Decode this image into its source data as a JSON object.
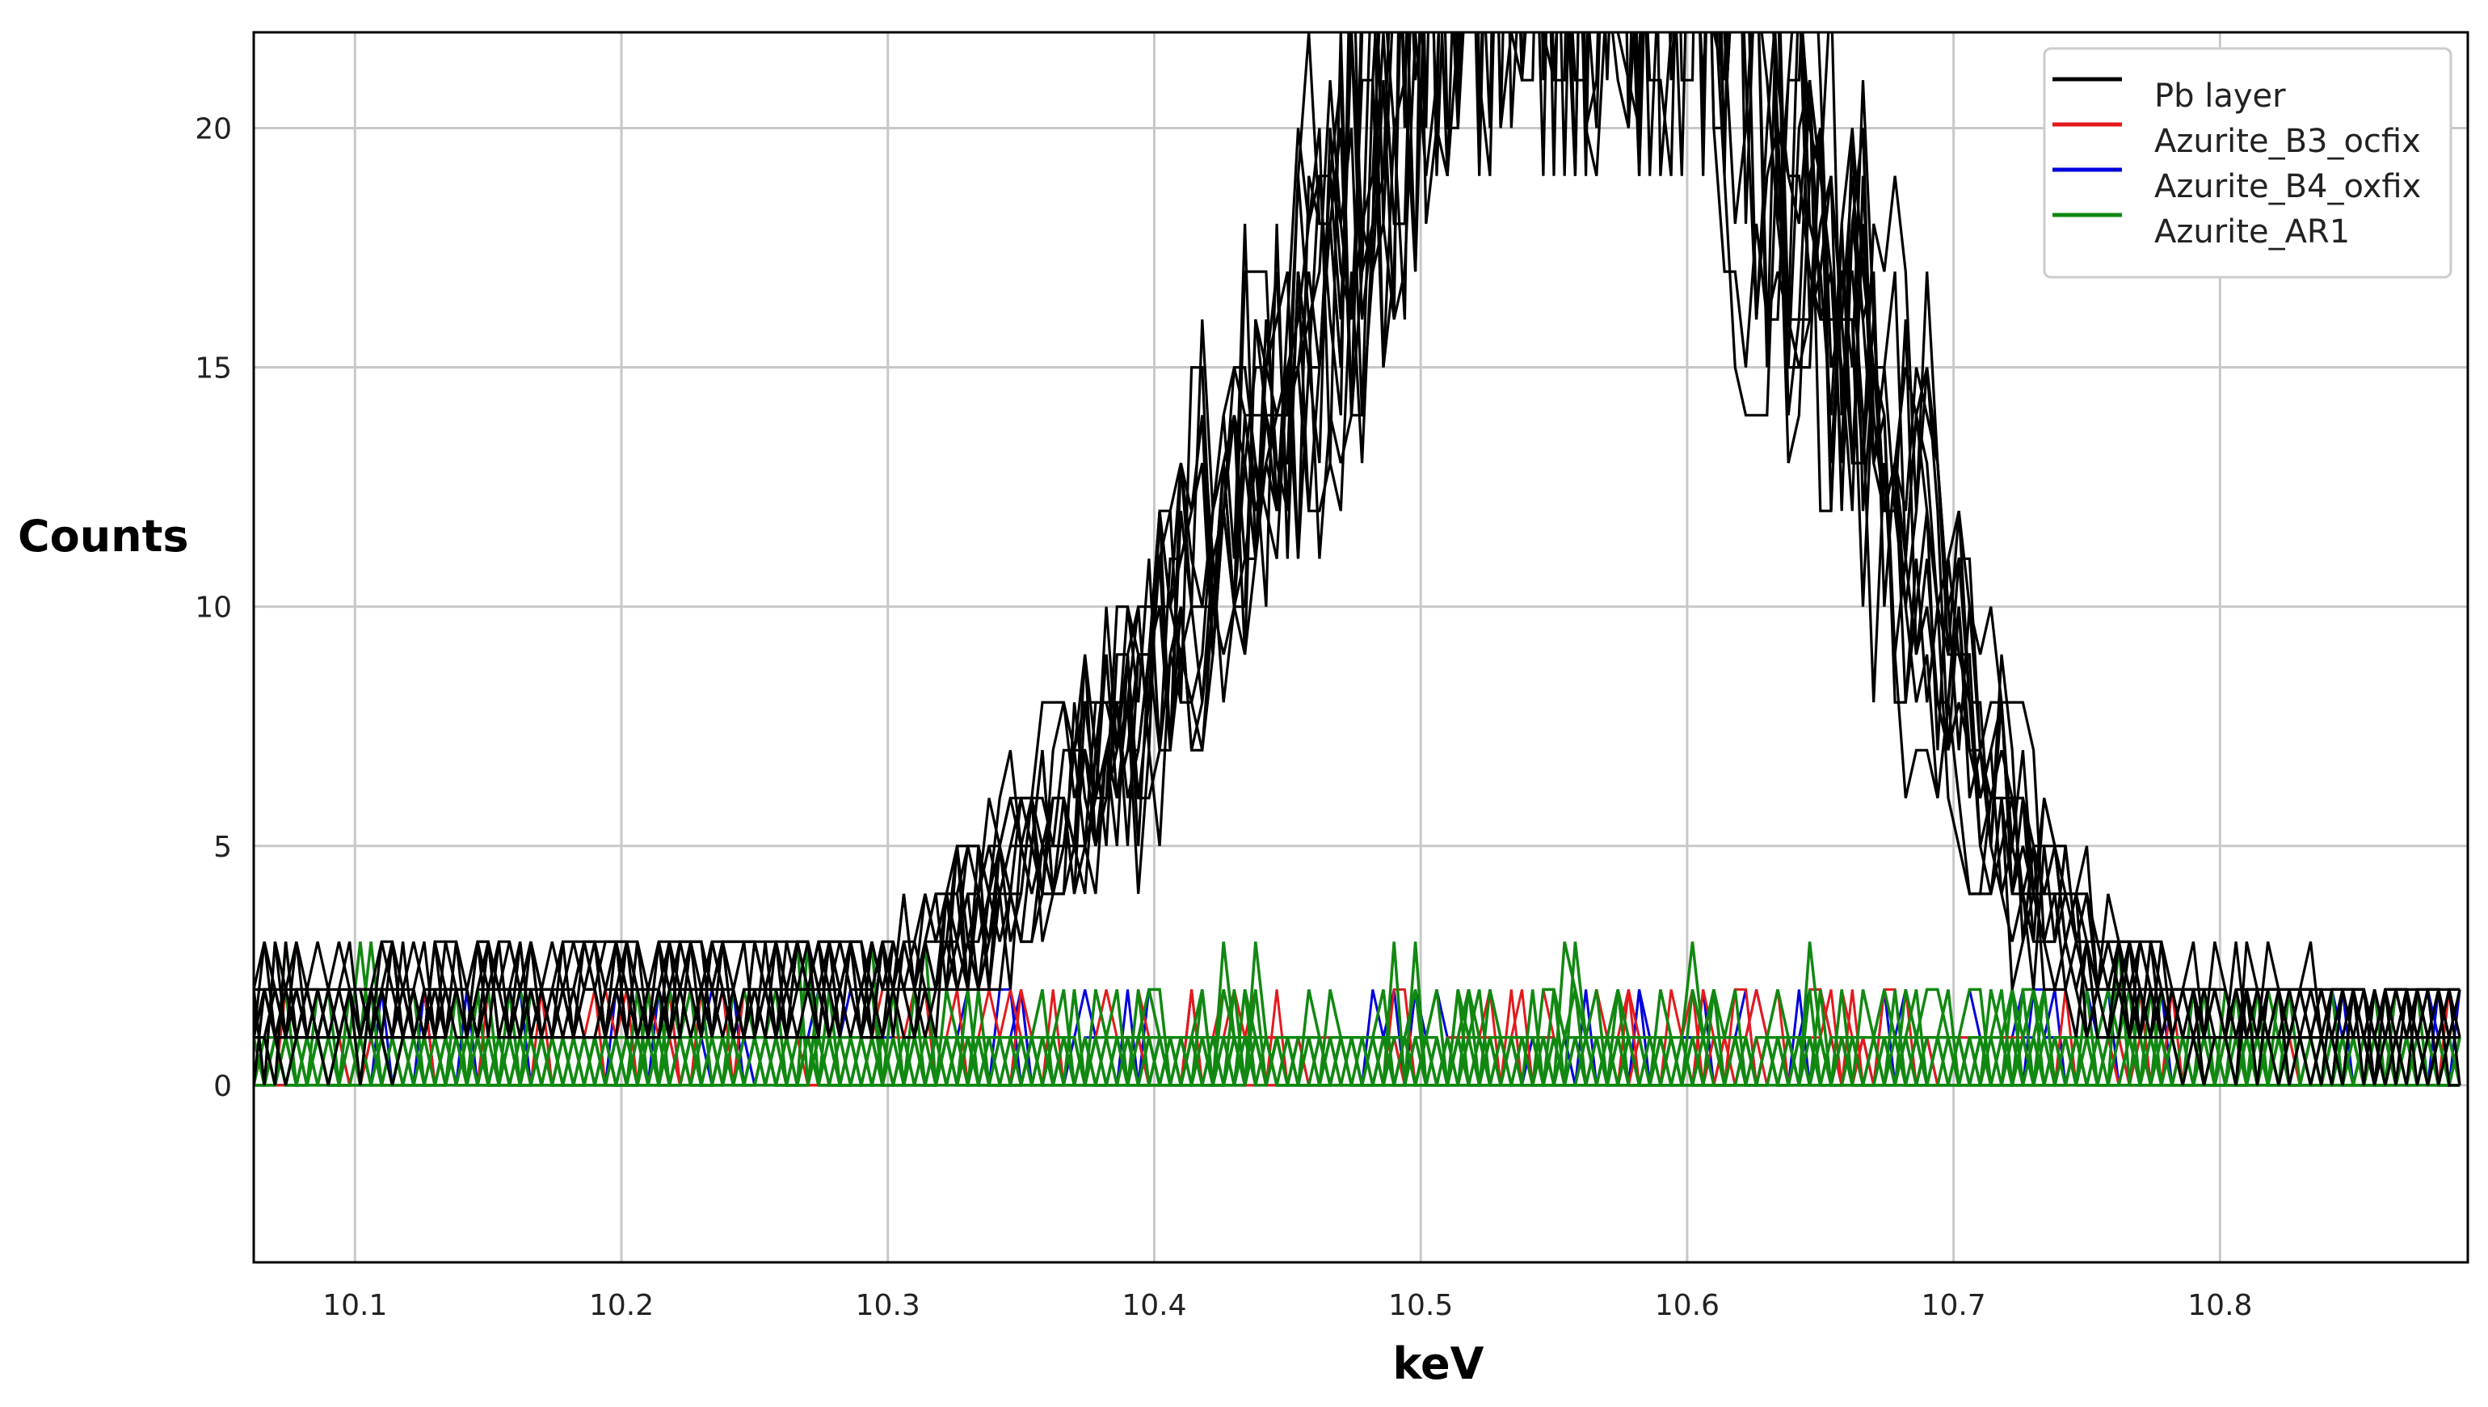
{
  "chart_data": {
    "type": "line",
    "title": "",
    "xlabel": "keV",
    "ylabel": "Counts",
    "xlim": [
      10.062,
      10.893
    ],
    "ylim": [
      -3.7,
      22
    ],
    "xticks": [
      10.1,
      10.2,
      10.3,
      10.4,
      10.5,
      10.6,
      10.7,
      10.8
    ],
    "yticks": [
      0,
      5,
      10,
      15,
      20
    ],
    "grid": true,
    "legend_position": "top-right",
    "series": [
      {
        "name": "Pb layer",
        "color": "#000000",
        "count": 12,
        "profile_x": [
          10.06,
          10.3,
          10.34,
          10.38,
          10.42,
          10.46,
          10.49,
          10.5,
          10.61,
          10.62,
          10.66,
          10.69,
          10.72,
          10.75,
          10.78,
          10.893
        ],
        "profile_y": [
          1.5,
          2.2,
          4.2,
          6.8,
          11,
          16.5,
          21.5,
          26,
          26,
          21.5,
          16,
          10,
          4.8,
          2.4,
          1.6,
          1.2
        ]
      },
      {
        "name": "Azurite_B3_ocfix",
        "color": "#e41a1c",
        "count": 6
      },
      {
        "name": "Azurite_B4_oxfix",
        "color": "#0000dd",
        "count": 6
      },
      {
        "name": "Azurite_AR1",
        "color": "#118811",
        "count": 12
      }
    ]
  }
}
